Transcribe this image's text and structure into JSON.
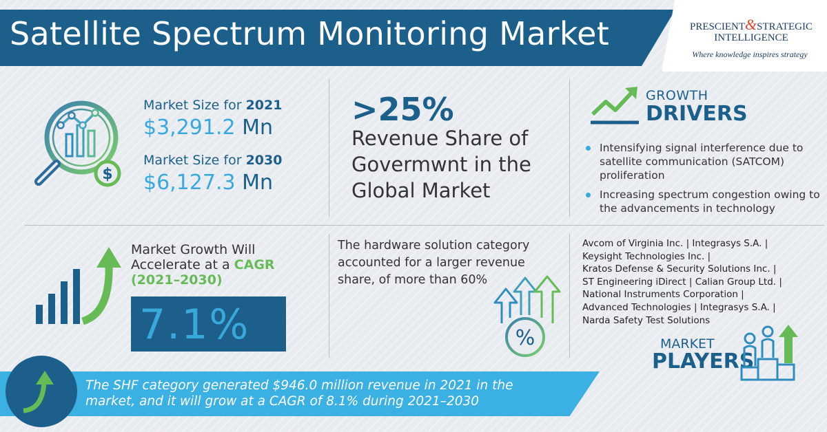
{
  "title": "Satellite Spectrum Monitoring Market",
  "logo": {
    "name_part1": "PRESCIENT",
    "ampersand": "&",
    "name_part2": "STRATEGIC",
    "name_line2": "INTELLIGENCE",
    "tagline": "Where knowledge inspires strategy"
  },
  "market_size": {
    "label_2021_prefix": "Market Size for",
    "year_2021": "2021",
    "value_2021": "$3,291.2",
    "unit_2021": "Mn",
    "label_2030_prefix": "Market Size for",
    "year_2030": "2030",
    "value_2030": "$6,127.3",
    "unit_2030": "Mn"
  },
  "share": {
    "percent": ">25%",
    "line1": "Revenue Share of",
    "line2": "Govermwnt in the",
    "line3": "Global Market"
  },
  "growth_drivers": {
    "heading_small": "GROWTH",
    "heading_big": "DRIVERS",
    "items": [
      "Intensifying signal interference due to satellite communication (SATCOM) proliferation",
      "Increasing spectrum congestion owing to the advancements in technology"
    ]
  },
  "cagr": {
    "line1": "Market Growth Will",
    "line2_prefix": "Accelerate at a",
    "line2_accent": "CAGR",
    "line3": "(2021–2030)",
    "value": "7.1%"
  },
  "hardware": {
    "text": "The hardware solution category accounted for a larger revenue share, of more than 60%"
  },
  "players": {
    "lines": [
      "Avcom of Virginia Inc. | Integrasys S.A. |",
      "Keysight Technologies Inc. |",
      "Kratos Defense & Security Solutions Inc. |",
      "ST Engineering iDirect | Calian Group Ltd. |",
      "National Instruments Corporation |",
      "Advanced Technologies | Integrasys S.A. |",
      "Narda Safety Test Solutions"
    ],
    "heading_small": "MARKET",
    "heading_big": "PLAYERS"
  },
  "footer": {
    "line1": "The SHF category generated $946.0 million revenue in 2021 in the",
    "line2": "market, and it will grow at a CAGR of 8.1% during 2021–2030"
  },
  "colors": {
    "navy": "#1c5f8a",
    "sky": "#39a9dc",
    "green": "#66bb56",
    "teal": "#2e8b8b",
    "background": "#e8ecf0"
  },
  "icons": {
    "market_size": "magnifier-chart-dollar-icon",
    "growth_drivers": "trend-up-arrow-icon",
    "cagr": "bar-chart-arrow-icon",
    "hardware": "percent-arrows-icon",
    "players": "people-podium-icon",
    "footer": "curved-arrow-icon"
  }
}
